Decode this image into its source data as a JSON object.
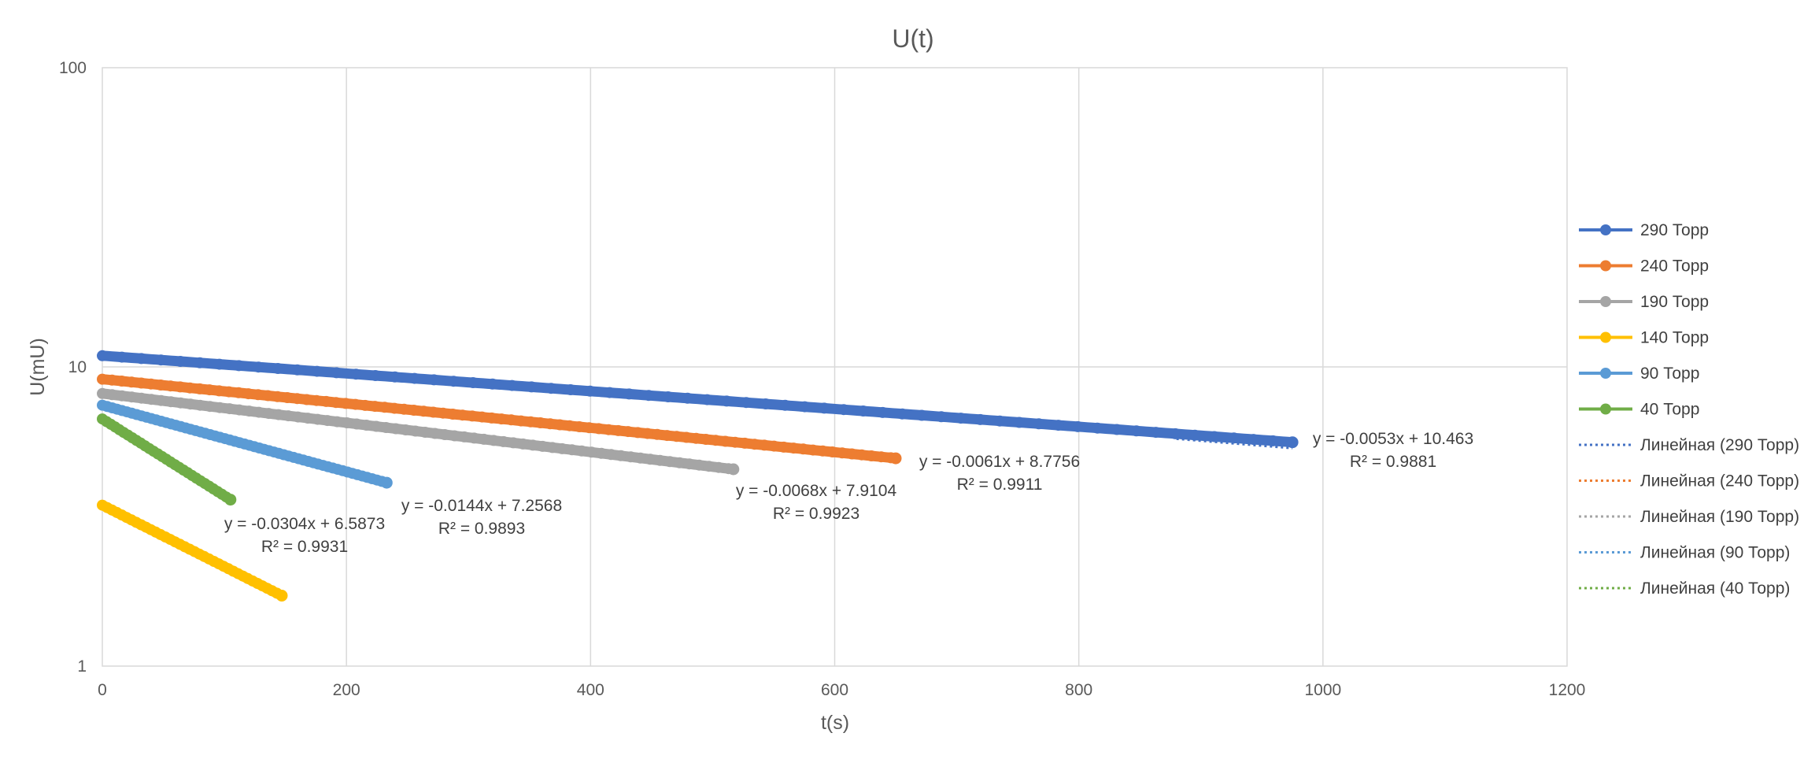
{
  "chart_data": {
    "type": "scatter",
    "title": "U(t)",
    "xlabel": "t(s)",
    "ylabel": "U(mU)",
    "xlim": [
      0,
      1200
    ],
    "ylim": [
      1,
      100
    ],
    "yscale": "log",
    "grid": true,
    "legend_position": "right",
    "x_ticks": [
      "0",
      "200",
      "400",
      "600",
      "800",
      "1000",
      "1200"
    ],
    "y_ticks": [
      "1",
      "10",
      "100"
    ],
    "series": [
      {
        "name": "290 Торр",
        "color": "#4472C4",
        "x": [
          0,
          975
        ],
        "y": [
          10.9,
          5.6
        ]
      },
      {
        "name": "240 Торр",
        "color": "#ED7D31",
        "x": [
          0,
          650
        ],
        "y": [
          9.1,
          4.95
        ]
      },
      {
        "name": "190 Торр",
        "color": "#A5A5A5",
        "x": [
          0,
          517
        ],
        "y": [
          8.15,
          4.55
        ]
      },
      {
        "name": "140 Торр",
        "color": "#FFC000",
        "x": [
          0,
          147
        ],
        "y": [
          3.45,
          1.72
        ]
      },
      {
        "name": "90 Торр",
        "color": "#5B9BD5",
        "x": [
          0,
          233
        ],
        "y": [
          7.45,
          4.1
        ]
      },
      {
        "name": "40 Торр",
        "color": "#70AD47",
        "x": [
          0,
          105
        ],
        "y": [
          6.7,
          3.6
        ]
      }
    ],
    "trendlines": [
      {
        "name": "Линейная (290 Торр)",
        "color": "#4472C4",
        "equation": "y = -0.0053x + 10.463",
        "r2": "R² = 0.9881"
      },
      {
        "name": "Линейная (240 Торр)",
        "color": "#ED7D31",
        "equation": "y = -0.0061x + 8.7756",
        "r2": "R² = 0.9911"
      },
      {
        "name": "Линейная (190 Торр)",
        "color": "#A5A5A5",
        "equation": "y = -0.0068x + 7.9104",
        "r2": "R² = 0.9923"
      },
      {
        "name": "Линейная (90 Торр)",
        "color": "#5B9BD5",
        "equation": "y = -0.0144x + 7.2568",
        "r2": "R² = 0.9893"
      },
      {
        "name": "Линейная (40 Торр)",
        "color": "#70AD47",
        "equation": "y = -0.0304x + 6.5873",
        "r2": "R² = 0.9931"
      }
    ]
  }
}
